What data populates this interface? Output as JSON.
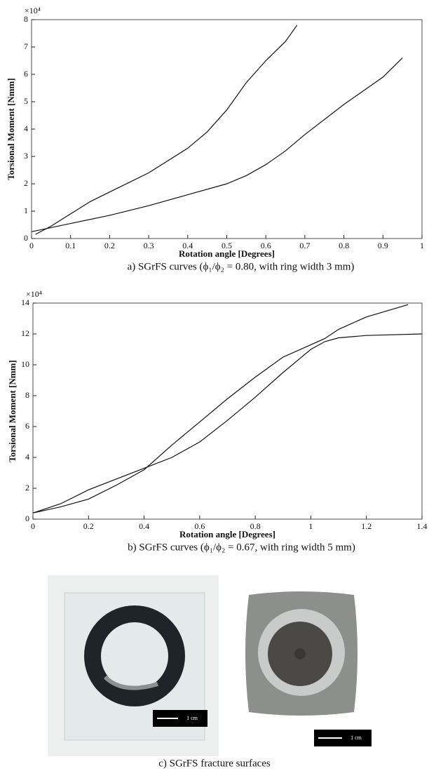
{
  "chart_data": [
    {
      "type": "line",
      "y_scale_label": "×10⁴",
      "x_label": "Rotation angle [Degrees]",
      "y_label": "Torsional Moment [Nmm]",
      "caption": "a) SGrFS curves (ϕ₁/ϕ₂ = 0.80, with ring width 3 mm)",
      "xlim": [
        0,
        1
      ],
      "xticks": [
        0,
        0.1,
        0.2,
        0.3,
        0.4,
        0.5,
        0.6,
        0.7,
        0.8,
        0.9,
        1
      ],
      "ylim": [
        0,
        8
      ],
      "yticks": [
        0,
        1,
        2,
        3,
        4,
        5,
        6,
        7,
        8
      ],
      "series": [
        {
          "color": "#111111",
          "x": [
            0.01,
            0.05,
            0.1,
            0.15,
            0.2,
            0.3,
            0.4,
            0.45,
            0.5,
            0.55,
            0.6,
            0.65,
            0.68
          ],
          "values": [
            0.15,
            0.45,
            0.9,
            1.35,
            1.7,
            2.4,
            3.3,
            3.9,
            4.7,
            5.7,
            6.5,
            7.2,
            7.8
          ]
        },
        {
          "color": "#111111",
          "x": [
            0,
            0.1,
            0.2,
            0.3,
            0.4,
            0.5,
            0.55,
            0.6,
            0.65,
            0.7,
            0.8,
            0.9,
            0.95
          ],
          "values": [
            0.25,
            0.55,
            0.85,
            1.2,
            1.6,
            2.0,
            2.3,
            2.7,
            3.2,
            3.8,
            4.9,
            5.9,
            6.6
          ]
        }
      ]
    },
    {
      "type": "line",
      "y_scale_label": "×10⁴",
      "x_label": "Rotation angle [Degrees]",
      "y_label": "Torsional Moment [Nmm]",
      "caption": "b) SGrFS curves (ϕ₁/ϕ₂ = 0.67, with ring width 5 mm)",
      "xlim": [
        0,
        1.4
      ],
      "xticks": [
        0,
        0.2,
        0.4,
        0.6,
        0.8,
        1,
        1.2,
        1.4
      ],
      "ylim": [
        0,
        14
      ],
      "yticks": [
        0,
        2,
        4,
        6,
        8,
        10,
        12,
        14
      ],
      "series": [
        {
          "color": "#111111",
          "x": [
            0,
            0.1,
            0.2,
            0.3,
            0.4,
            0.5,
            0.6,
            0.7,
            0.8,
            0.9,
            1.0,
            1.05,
            1.1,
            1.2,
            1.35
          ],
          "values": [
            0.4,
            0.8,
            1.3,
            2.2,
            3.2,
            4.8,
            6.3,
            7.8,
            9.2,
            10.5,
            11.3,
            11.7,
            12.3,
            13.1,
            13.9
          ]
        },
        {
          "color": "#111111",
          "x": [
            0,
            0.1,
            0.2,
            0.3,
            0.4,
            0.5,
            0.6,
            0.7,
            0.8,
            0.9,
            1.0,
            1.05,
            1.1,
            1.2,
            1.4
          ],
          "values": [
            0.4,
            1.0,
            1.9,
            2.6,
            3.3,
            4.0,
            5.0,
            6.4,
            7.9,
            9.5,
            11.0,
            11.5,
            11.75,
            11.9,
            12.0
          ]
        }
      ]
    }
  ],
  "photos": {
    "caption": "c) SGrFS fracture surfaces",
    "scale_labels": [
      "1 cm",
      "1 cm"
    ]
  }
}
